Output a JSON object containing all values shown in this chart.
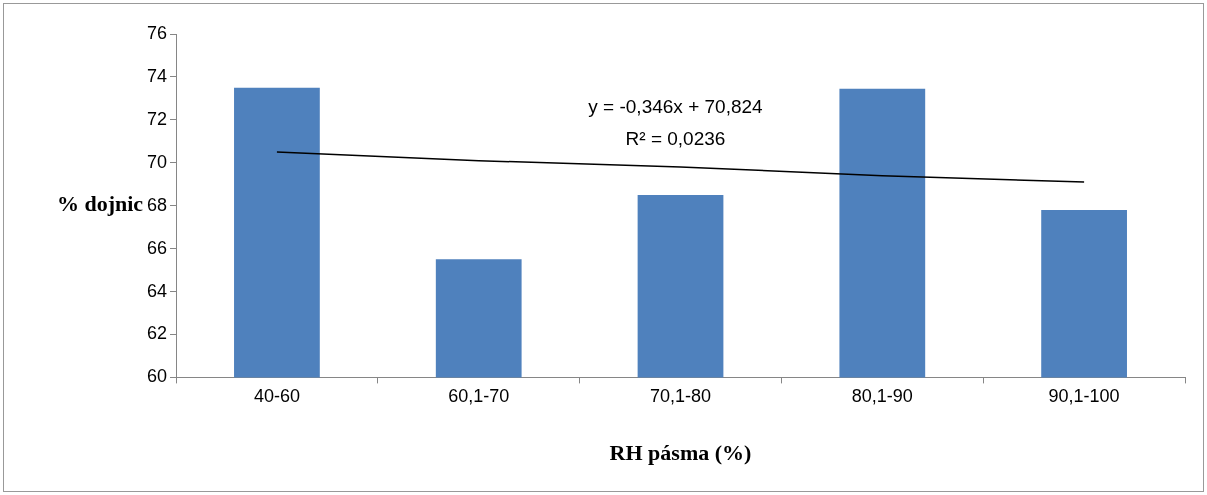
{
  "chart_data": {
    "type": "bar",
    "xlabel": "RH pásma (%)",
    "ylabel": "% dojnic",
    "categories": [
      "40-60",
      "60,1-70",
      "70,1-80",
      "80,1-90",
      "90,1-100"
    ],
    "series": [
      {
        "color": "#4f81bd",
        "values": [
          73.5,
          65.5,
          68.5,
          73.45,
          67.8
        ]
      },
      {
        "type": "line",
        "color": "#000000",
        "marker": "none",
        "values": [
          70.5,
          70.1,
          69.8,
          69.4,
          69.1
        ]
      }
    ],
    "ylim": [
      60,
      76
    ],
    "yticks": [
      60,
      62,
      64,
      66,
      68,
      70,
      72,
      74,
      76
    ],
    "annotations": [
      "y = -0,346x + 70,824",
      "R² = 0,0236"
    ],
    "grid": false,
    "legend": false
  }
}
